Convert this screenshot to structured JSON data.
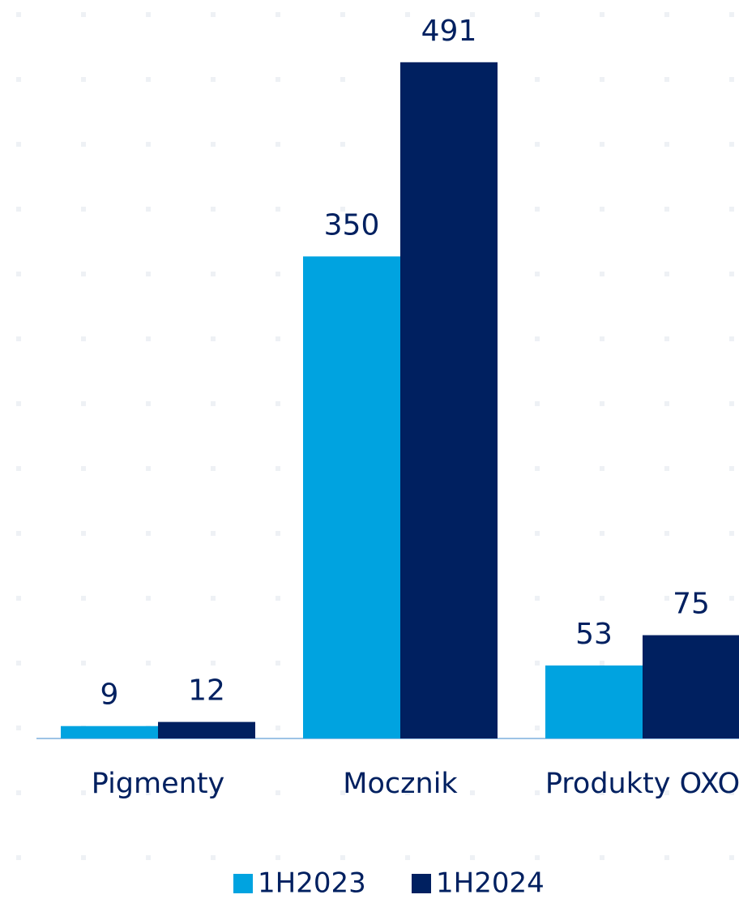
{
  "chart_data": {
    "type": "bar",
    "categories": [
      "Pigmenty",
      "Mocznik",
      "Produkty OXO"
    ],
    "series": [
      {
        "name": "1H2023",
        "color": "#00a3e0",
        "values": [
          9,
          350,
          53
        ]
      },
      {
        "name": "1H2024",
        "color": "#002060",
        "values": [
          12,
          491,
          75
        ]
      }
    ],
    "legend": "bottom"
  }
}
